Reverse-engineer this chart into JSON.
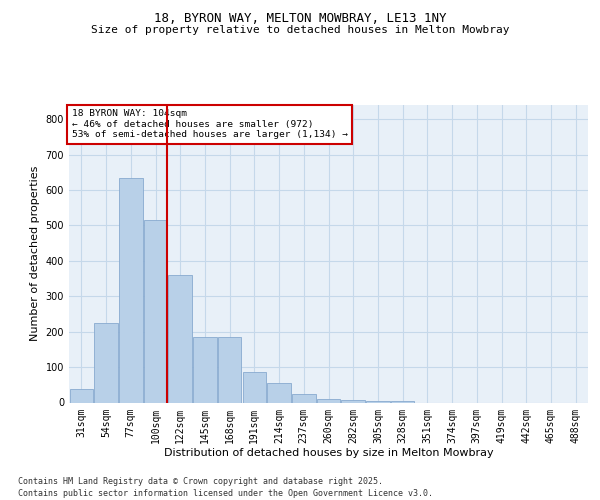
{
  "title1": "18, BYRON WAY, MELTON MOWBRAY, LE13 1NY",
  "title2": "Size of property relative to detached houses in Melton Mowbray",
  "xlabel": "Distribution of detached houses by size in Melton Mowbray",
  "ylabel": "Number of detached properties",
  "footer1": "Contains HM Land Registry data © Crown copyright and database right 2025.",
  "footer2": "Contains public sector information licensed under the Open Government Licence v3.0.",
  "annotation_line1": "18 BYRON WAY: 104sqm",
  "annotation_line2": "← 46% of detached houses are smaller (972)",
  "annotation_line3": "53% of semi-detached houses are larger (1,134) →",
  "bar_color": "#b8d0e8",
  "bar_edge_color": "#88aacf",
  "grid_color": "#c5d8ea",
  "background_color": "#e8f0f8",
  "marker_line_color": "#cc0000",
  "annotation_box_color": "#cc0000",
  "categories": [
    "31sqm",
    "54sqm",
    "77sqm",
    "100sqm",
    "122sqm",
    "145sqm",
    "168sqm",
    "191sqm",
    "214sqm",
    "237sqm",
    "260sqm",
    "282sqm",
    "305sqm",
    "328sqm",
    "351sqm",
    "374sqm",
    "397sqm",
    "419sqm",
    "442sqm",
    "465sqm",
    "488sqm"
  ],
  "values": [
    38,
    225,
    635,
    515,
    360,
    185,
    185,
    85,
    55,
    25,
    10,
    8,
    5,
    3,
    0,
    0,
    0,
    0,
    0,
    0,
    0
  ],
  "marker_bar_idx": 3,
  "ylim": [
    0,
    840
  ],
  "yticks": [
    0,
    100,
    200,
    300,
    400,
    500,
    600,
    700,
    800
  ],
  "title_fontsize": 9,
  "subtitle_fontsize": 8,
  "ylabel_fontsize": 8,
  "xlabel_fontsize": 8,
  "tick_fontsize": 7,
  "footer_fontsize": 6
}
